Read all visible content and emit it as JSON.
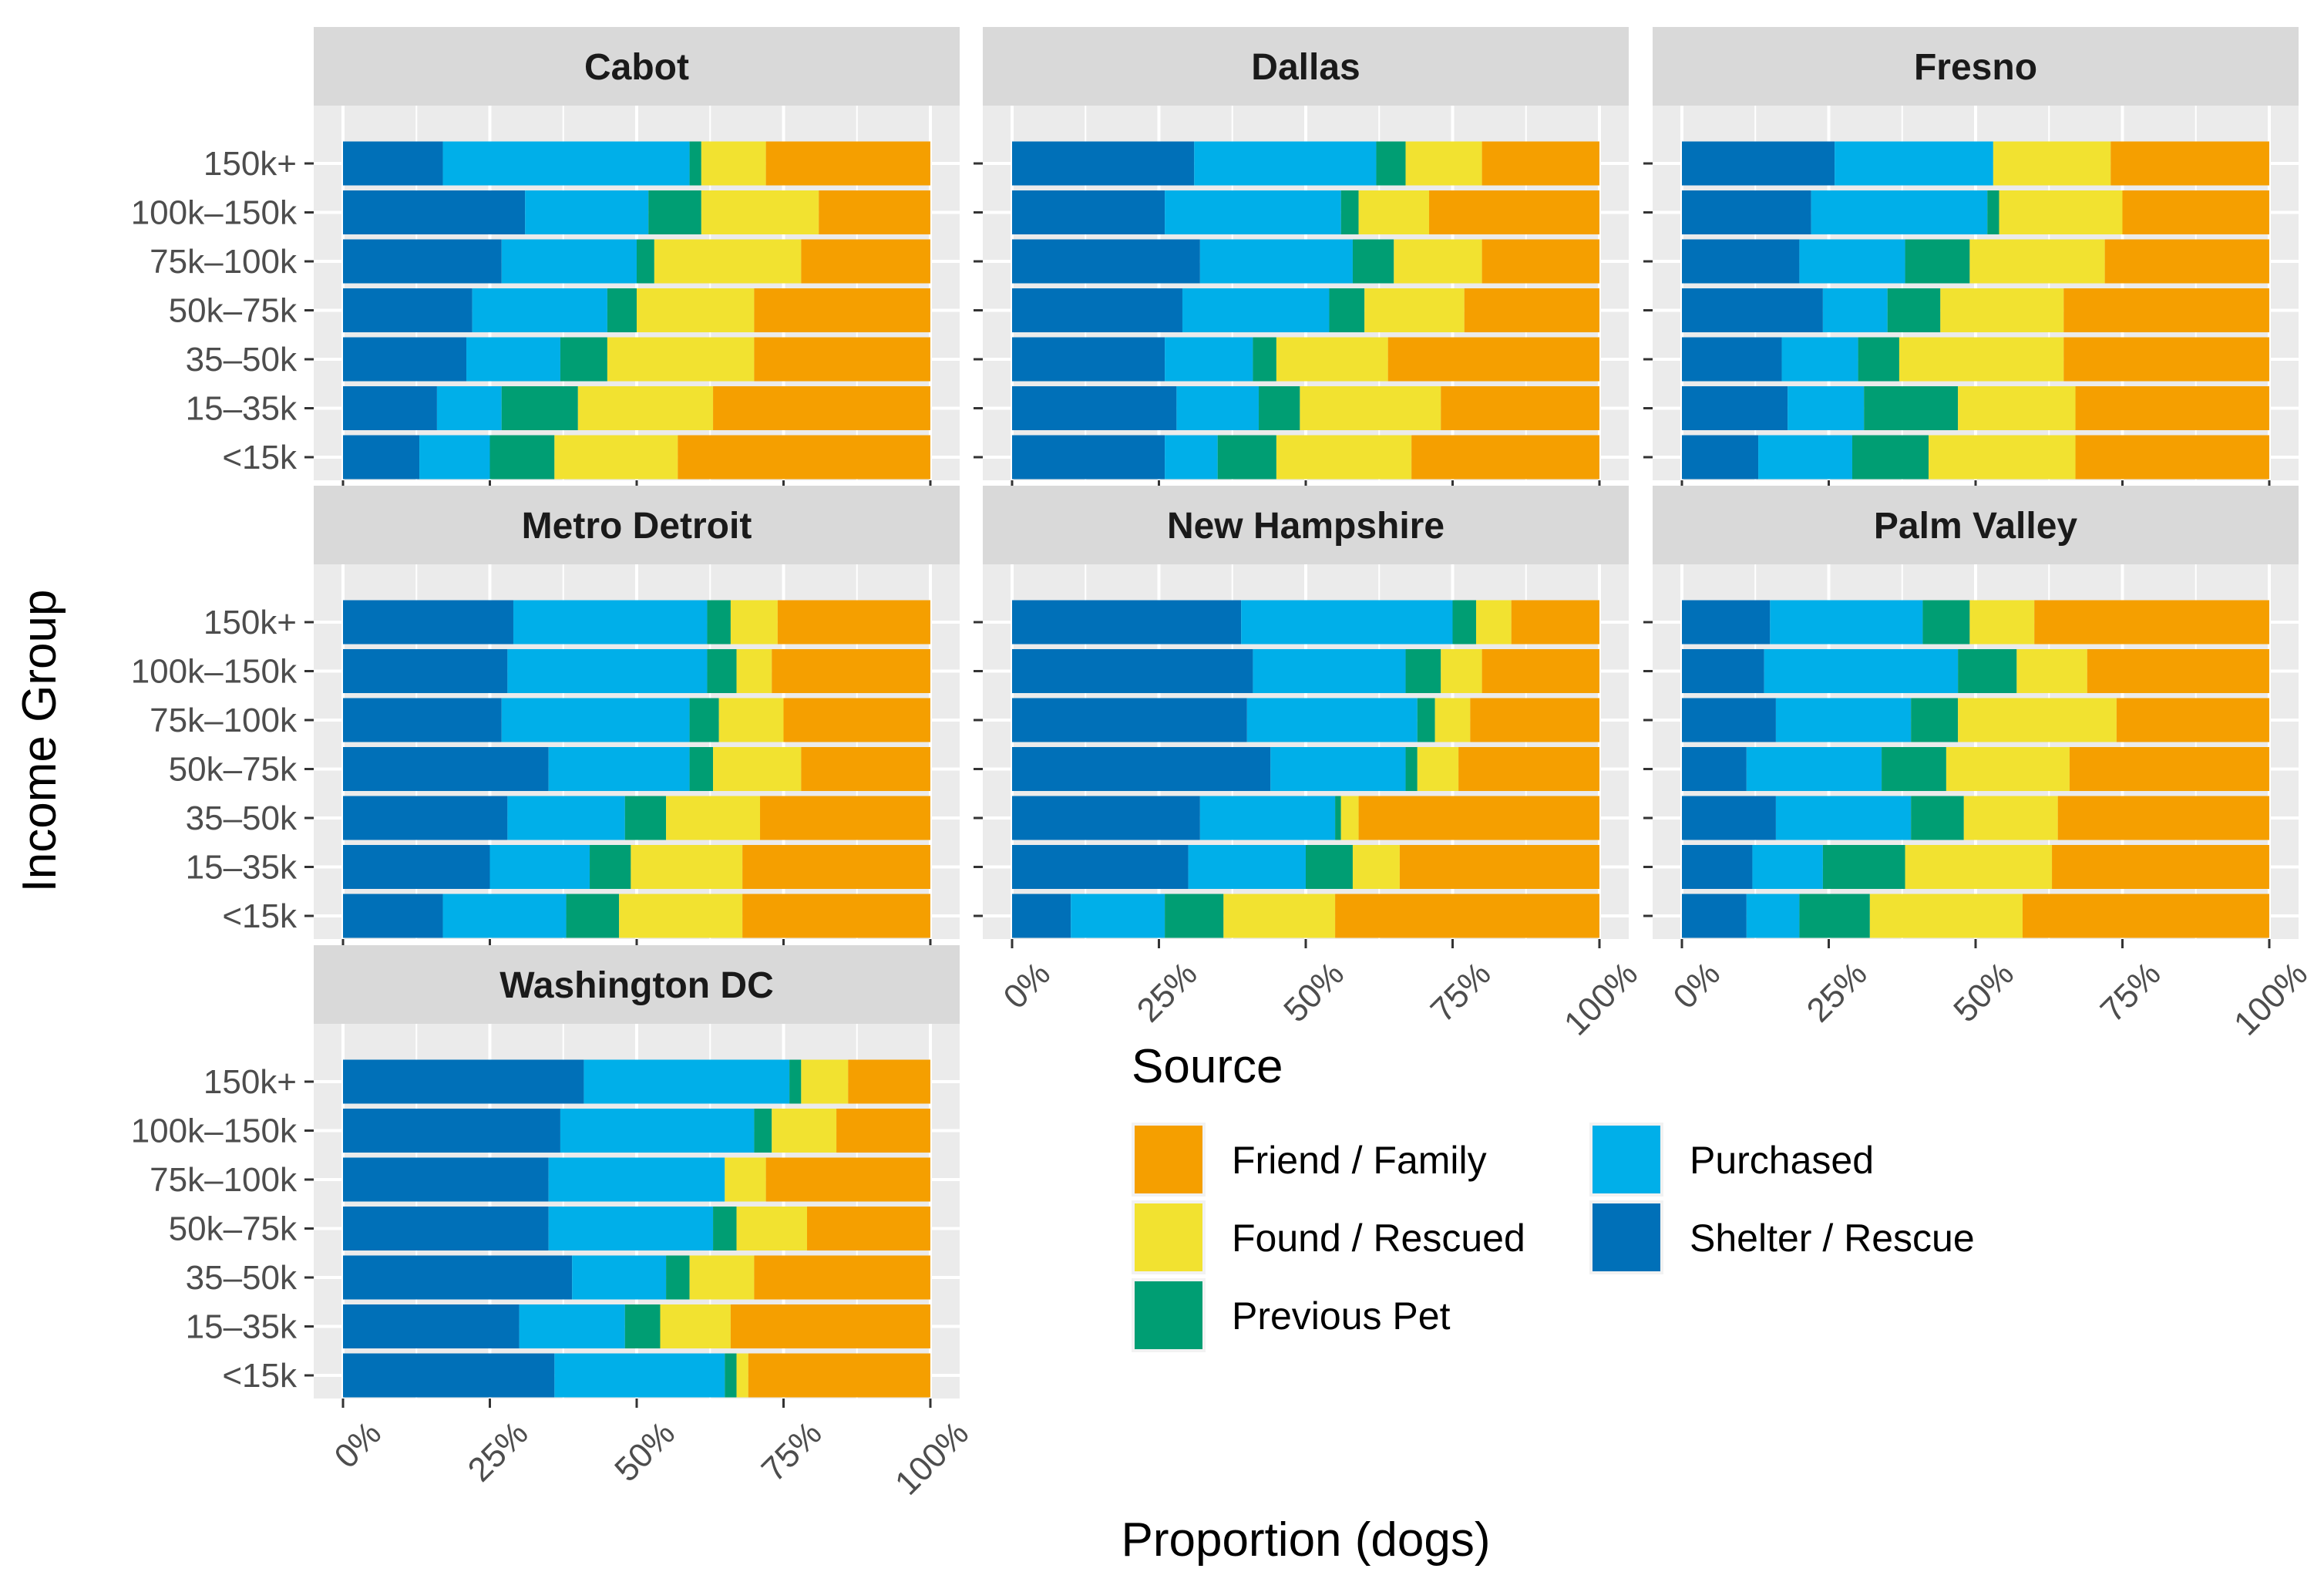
{
  "chart_data": {
    "type": "bar",
    "orientation": "horizontal",
    "stacked": true,
    "xlabel": "Proportion (dogs)",
    "ylabel": "Income Group",
    "xlim": [
      0,
      1
    ],
    "x_ticks": [
      0,
      0.25,
      0.5,
      0.75,
      1
    ],
    "x_tick_labels": [
      "0%",
      "25%",
      "50%",
      "75%",
      "100%"
    ],
    "categories": [
      "150k+",
      "100k–150k",
      "75k–100k",
      "50k–75k",
      "35–50k",
      "15–35k",
      "<15k"
    ],
    "series_order": [
      "Shelter / Rescue",
      "Purchased",
      "Previous Pet",
      "Found / Rescued",
      "Friend / Family"
    ],
    "colors": {
      "Friend / Family": "#F59F00",
      "Found / Rescued": "#F2E230",
      "Previous Pet": "#009E73",
      "Purchased": "#00AFE9",
      "Shelter / Rescue": "#0070B8"
    },
    "legend": {
      "title": "Source",
      "entries": [
        "Friend / Family",
        "Found / Rescued",
        "Previous Pet",
        "Purchased",
        "Shelter / Rescue"
      ],
      "position": "bottom-right"
    },
    "facets": [
      {
        "name": "Cabot",
        "values": [
          [
            0.17,
            0.42,
            0.02,
            0.11,
            0.28
          ],
          [
            0.31,
            0.21,
            0.09,
            0.2,
            0.19
          ],
          [
            0.27,
            0.23,
            0.03,
            0.25,
            0.22
          ],
          [
            0.22,
            0.23,
            0.05,
            0.2,
            0.3
          ],
          [
            0.21,
            0.16,
            0.08,
            0.25,
            0.3
          ],
          [
            0.16,
            0.11,
            0.13,
            0.23,
            0.37
          ],
          [
            0.13,
            0.12,
            0.11,
            0.21,
            0.43
          ]
        ]
      },
      {
        "name": "Dallas",
        "values": [
          [
            0.31,
            0.31,
            0.05,
            0.13,
            0.2
          ],
          [
            0.26,
            0.3,
            0.03,
            0.12,
            0.29
          ],
          [
            0.32,
            0.26,
            0.07,
            0.15,
            0.2
          ],
          [
            0.29,
            0.25,
            0.06,
            0.17,
            0.23
          ],
          [
            0.26,
            0.15,
            0.04,
            0.19,
            0.36
          ],
          [
            0.28,
            0.14,
            0.07,
            0.24,
            0.27
          ],
          [
            0.26,
            0.09,
            0.1,
            0.23,
            0.32
          ]
        ]
      },
      {
        "name": "Fresno",
        "values": [
          [
            0.26,
            0.27,
            0.0,
            0.2,
            0.27
          ],
          [
            0.22,
            0.3,
            0.02,
            0.21,
            0.25
          ],
          [
            0.2,
            0.18,
            0.11,
            0.23,
            0.28
          ],
          [
            0.24,
            0.11,
            0.09,
            0.21,
            0.35
          ],
          [
            0.17,
            0.13,
            0.07,
            0.28,
            0.35
          ],
          [
            0.18,
            0.13,
            0.16,
            0.2,
            0.33
          ],
          [
            0.13,
            0.16,
            0.13,
            0.25,
            0.33
          ]
        ]
      },
      {
        "name": "Metro Detroit",
        "values": [
          [
            0.29,
            0.33,
            0.04,
            0.08,
            0.26
          ],
          [
            0.28,
            0.34,
            0.05,
            0.06,
            0.27
          ],
          [
            0.27,
            0.32,
            0.05,
            0.11,
            0.25
          ],
          [
            0.35,
            0.24,
            0.04,
            0.15,
            0.22
          ],
          [
            0.28,
            0.2,
            0.07,
            0.16,
            0.29
          ],
          [
            0.25,
            0.17,
            0.07,
            0.19,
            0.32
          ],
          [
            0.17,
            0.21,
            0.09,
            0.21,
            0.32
          ]
        ]
      },
      {
        "name": "New Hampshire",
        "values": [
          [
            0.39,
            0.36,
            0.04,
            0.06,
            0.15
          ],
          [
            0.41,
            0.26,
            0.06,
            0.07,
            0.2
          ],
          [
            0.4,
            0.29,
            0.03,
            0.06,
            0.22
          ],
          [
            0.44,
            0.23,
            0.02,
            0.07,
            0.24
          ],
          [
            0.32,
            0.23,
            0.01,
            0.03,
            0.41
          ],
          [
            0.3,
            0.2,
            0.08,
            0.08,
            0.34
          ],
          [
            0.1,
            0.16,
            0.1,
            0.19,
            0.45
          ]
        ]
      },
      {
        "name": "Palm Valley",
        "values": [
          [
            0.15,
            0.26,
            0.08,
            0.11,
            0.4
          ],
          [
            0.14,
            0.33,
            0.1,
            0.12,
            0.31
          ],
          [
            0.16,
            0.23,
            0.08,
            0.27,
            0.26
          ],
          [
            0.11,
            0.23,
            0.11,
            0.21,
            0.34
          ],
          [
            0.16,
            0.23,
            0.09,
            0.16,
            0.36
          ],
          [
            0.12,
            0.12,
            0.14,
            0.25,
            0.37
          ],
          [
            0.11,
            0.09,
            0.12,
            0.26,
            0.42
          ]
        ]
      },
      {
        "name": "Washington DC",
        "values": [
          [
            0.41,
            0.35,
            0.02,
            0.08,
            0.14
          ],
          [
            0.37,
            0.33,
            0.03,
            0.11,
            0.16
          ],
          [
            0.35,
            0.3,
            0.0,
            0.07,
            0.28
          ],
          [
            0.35,
            0.28,
            0.04,
            0.12,
            0.21
          ],
          [
            0.39,
            0.16,
            0.04,
            0.11,
            0.3
          ],
          [
            0.3,
            0.18,
            0.06,
            0.12,
            0.34
          ],
          [
            0.36,
            0.29,
            0.02,
            0.02,
            0.31
          ]
        ]
      }
    ]
  }
}
